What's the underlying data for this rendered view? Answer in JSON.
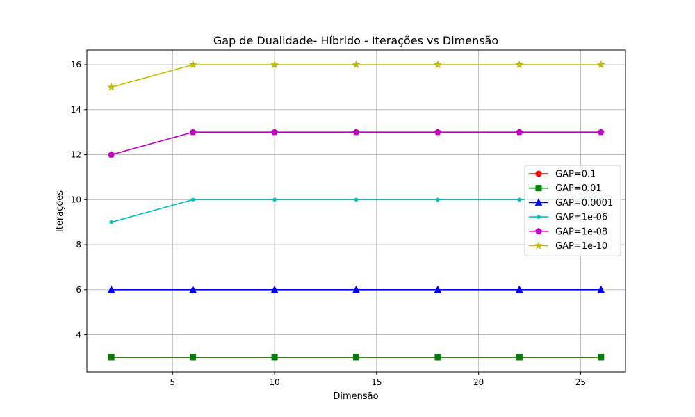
{
  "chart_data": {
    "type": "line",
    "title": "Gap de Dualidade- Híbrido - Iterações vs Dimensão",
    "xlabel": "Dimensão",
    "ylabel": "Iterações",
    "x": [
      2,
      6,
      10,
      14,
      18,
      22,
      26
    ],
    "xlim": [
      0.8,
      27.2
    ],
    "ylim": [
      2.35,
      16.65
    ],
    "xticks": [
      5,
      10,
      15,
      20,
      25
    ],
    "yticks": [
      4,
      6,
      8,
      10,
      12,
      14,
      16
    ],
    "grid": true,
    "legend_position": "center-right",
    "series": [
      {
        "name": "GAP=0.1",
        "values": [
          3,
          3,
          3,
          3,
          3,
          3,
          3
        ],
        "color": "#ff0000",
        "marker": "circle"
      },
      {
        "name": "GAP=0.01",
        "values": [
          3,
          3,
          3,
          3,
          3,
          3,
          3
        ],
        "color": "#008000",
        "marker": "square"
      },
      {
        "name": "GAP=0.0001",
        "values": [
          6,
          6,
          6,
          6,
          6,
          6,
          6
        ],
        "color": "#0000ff",
        "marker": "triangle"
      },
      {
        "name": "GAP=1e-06",
        "values": [
          9,
          10,
          10,
          10,
          10,
          10,
          10
        ],
        "color": "#00bfbf",
        "marker": "point"
      },
      {
        "name": "GAP=1e-08",
        "values": [
          12,
          13,
          13,
          13,
          13,
          13,
          13
        ],
        "color": "#bf00bf",
        "marker": "pentagon"
      },
      {
        "name": "GAP=1e-10",
        "values": [
          15,
          16,
          16,
          16,
          16,
          16,
          16
        ],
        "color": "#bfbf00",
        "marker": "star"
      }
    ]
  }
}
